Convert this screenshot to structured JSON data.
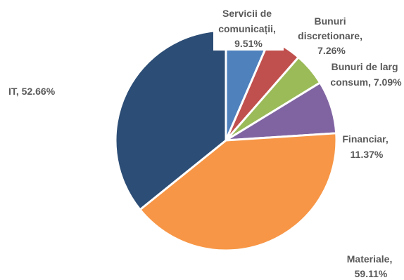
{
  "chart_data": {
    "type": "pie",
    "title": "",
    "slices": [
      {
        "category": "Servicii de comunicații",
        "value": 9.51,
        "label": "Servicii de comunicații, 9.51%",
        "color": "#4F81BD"
      },
      {
        "category": "Bunuri discretionare",
        "value": 7.26,
        "label": "Bunuri discretionare, 7.26%",
        "color": "#C0504D"
      },
      {
        "category": "Bunuri de larg consum",
        "value": 7.09,
        "label": "Bunuri de larg consum, 7.09%",
        "color": "#9BBB59"
      },
      {
        "category": "Financiar",
        "value": 11.37,
        "label": "Financiar, 11.37%",
        "color": "#8064A2"
      },
      {
        "category": "Materiale",
        "value": 59.11,
        "label": "Materiale, 59.11%",
        "color": "#F79646"
      },
      {
        "category": "IT",
        "value": 52.66,
        "label": "IT, 52.66%",
        "color": "#2C4D75"
      }
    ],
    "legend": "none"
  }
}
